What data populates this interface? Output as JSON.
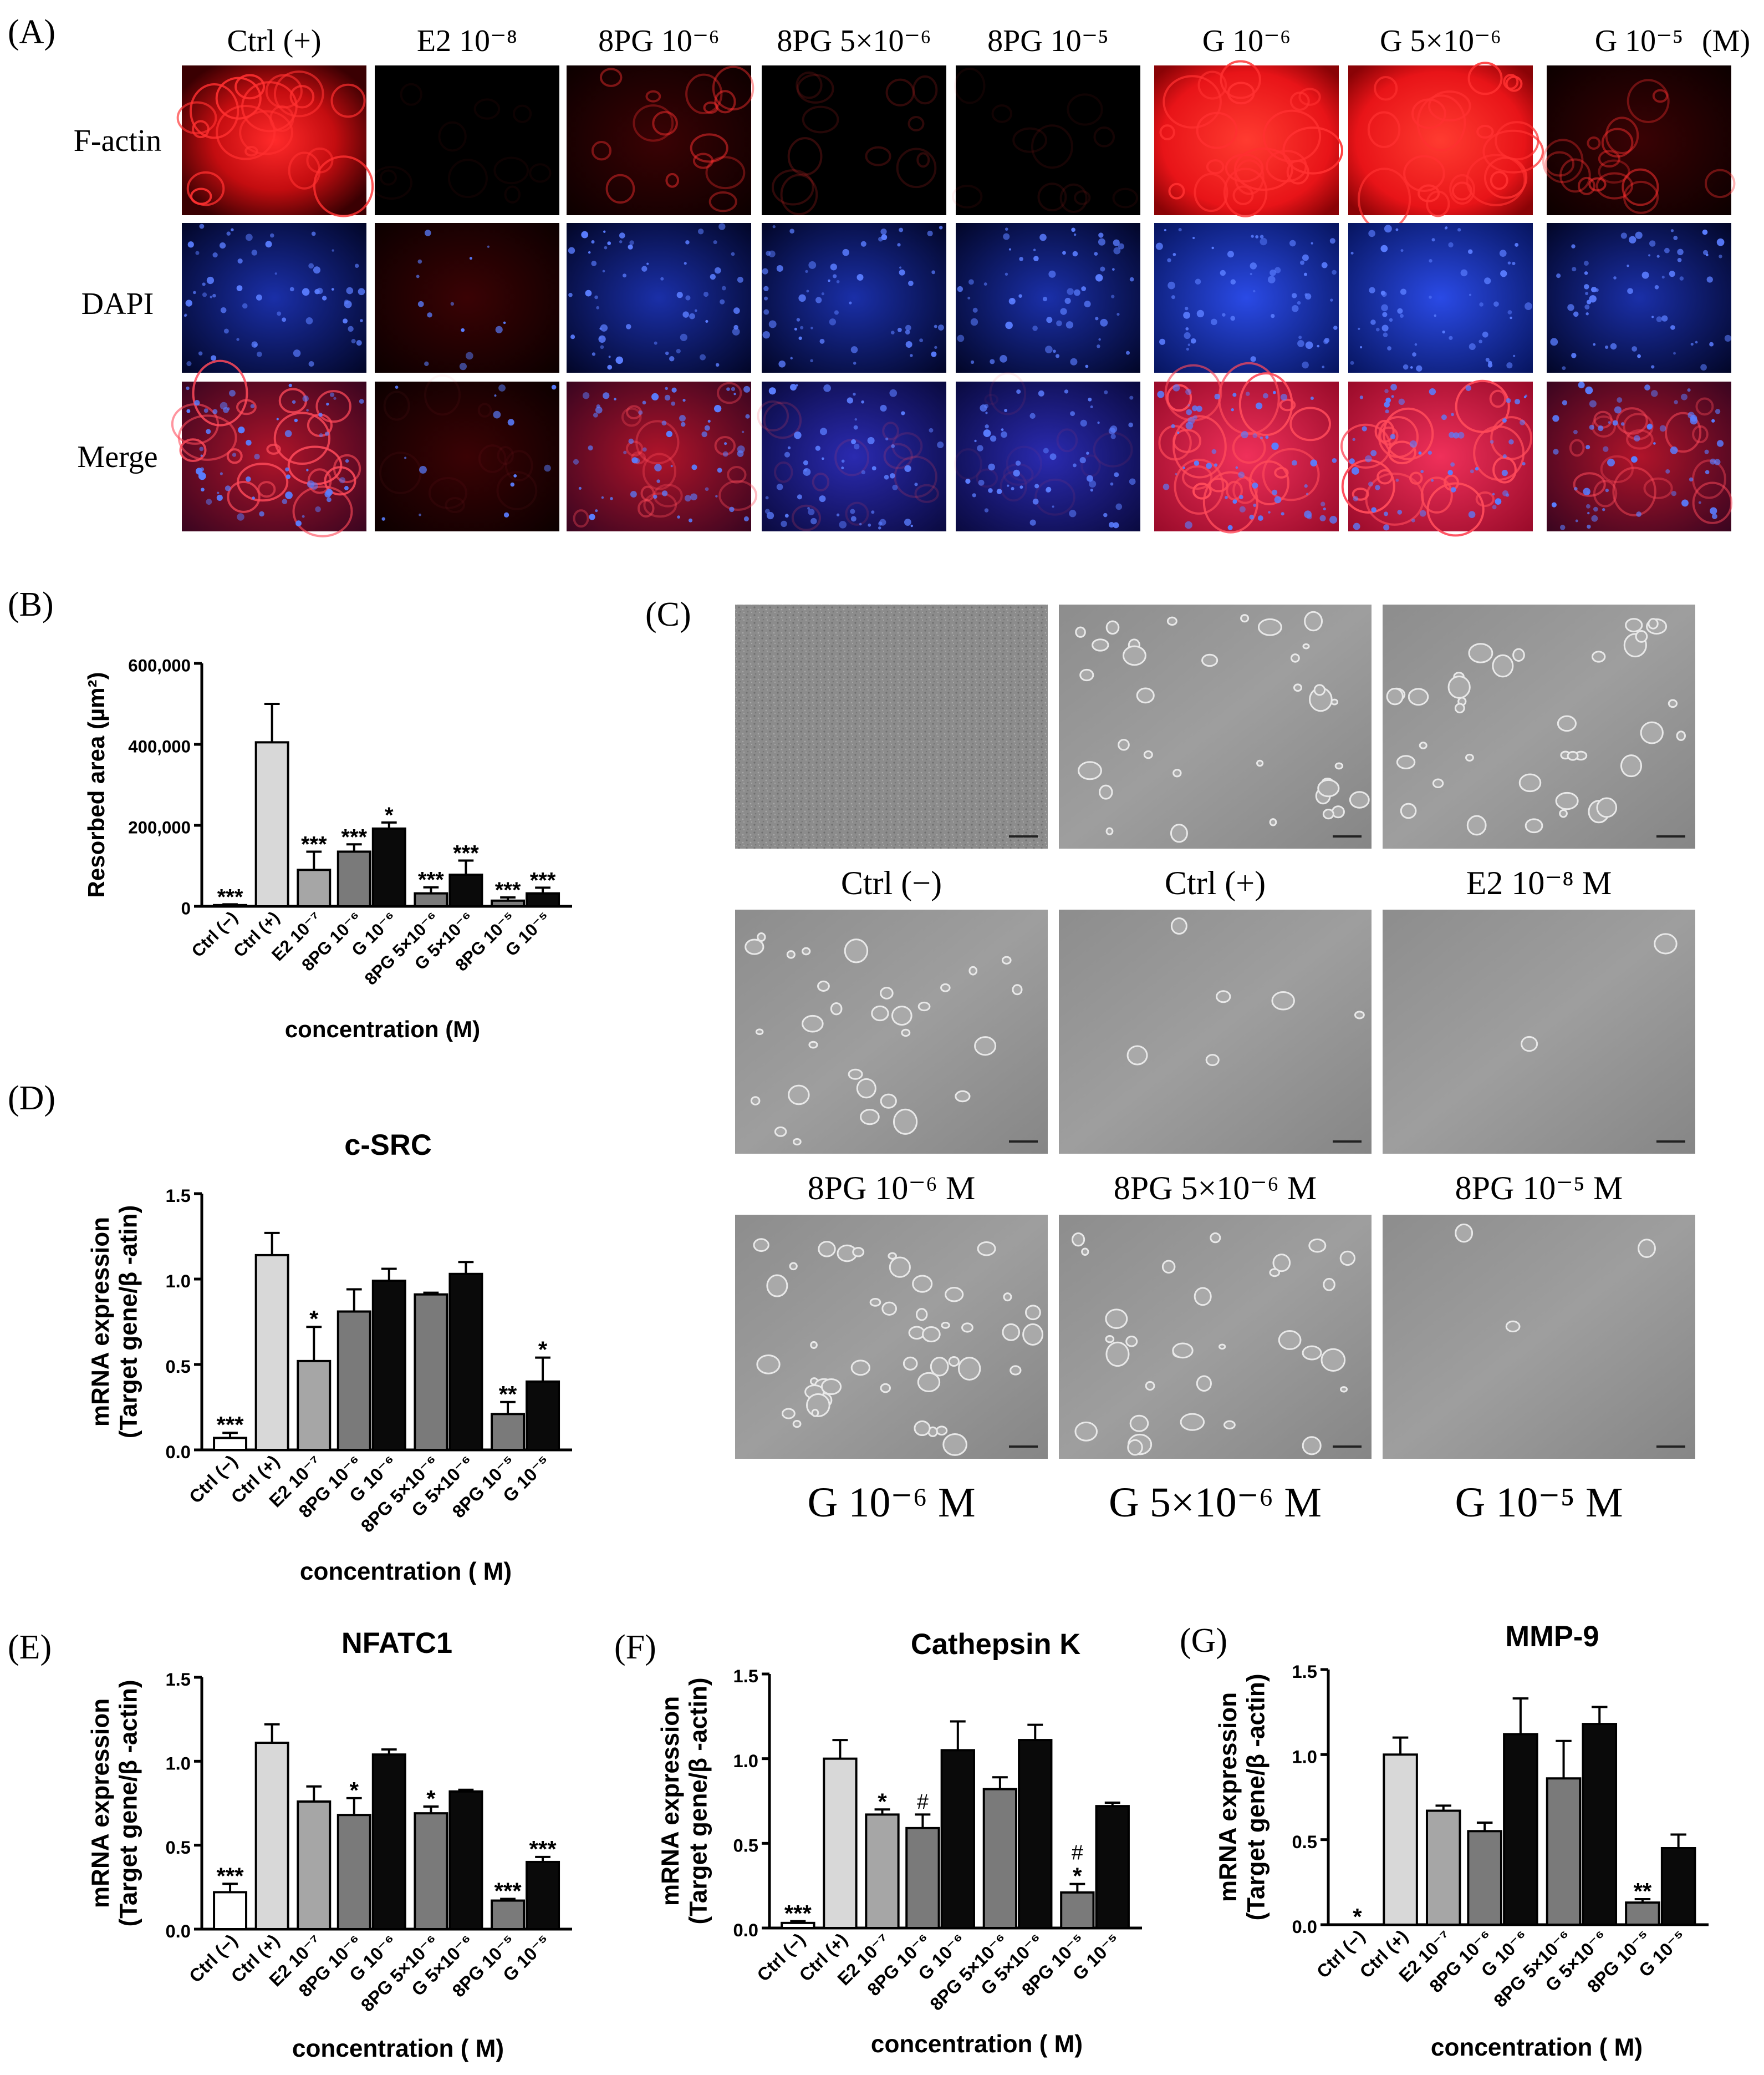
{
  "panels": {
    "A": {
      "tag": "(A)",
      "columns": [
        "Ctrl (+)",
        "E2 10⁻⁸",
        "8PG 10⁻⁶",
        "8PG 5×10⁻⁶",
        "8PG 10⁻⁵",
        "G 10⁻⁶",
        "G 5×10⁻⁶",
        "G 10⁻⁵"
      ],
      "unit": "(M)",
      "rows": [
        "F-actin",
        "DAPI",
        "Merge"
      ]
    },
    "B": {
      "tag": "(B)"
    },
    "C": {
      "tag": "(C)",
      "labels": [
        "Ctrl (−)",
        "Ctrl (+)",
        "E2 10⁻⁸ M",
        "8PG 10⁻⁶ M",
        "8PG 5×10⁻⁶ M",
        "8PG 10⁻⁵ M",
        "G 10⁻⁶ M",
        "G 5×10⁻⁶ M",
        "G 10⁻⁵ M"
      ]
    },
    "D": {
      "tag": "(D)"
    },
    "E": {
      "tag": "(E)"
    },
    "F": {
      "tag": "(F)"
    },
    "G": {
      "tag": "(G)"
    }
  },
  "colors": {
    "bar_white": "#ffffff",
    "bar_light": "#d8d8d8",
    "bar_mid": "#a6a6a6",
    "bar_dark": "#7a7a7a",
    "bar_black": "#0a0a0a",
    "factin_red": "#e8151a",
    "dapi_blue": "#1c3cdc"
  },
  "chart_data": [
    {
      "id": "B",
      "type": "bar",
      "title": "",
      "ylabel": "Resorbed area (µm²)",
      "xlabel": "concentration (M)",
      "ylim": [
        0,
        600000
      ],
      "yticks": [
        0,
        200000,
        400000,
        600000
      ],
      "ytick_labels": [
        "0",
        "200,000",
        "400,000",
        "600,000"
      ],
      "categories": [
        "Ctrl (−)",
        "Ctrl (+)",
        "E2 10⁻⁷",
        "8PG 10⁻⁶",
        "G 10⁻⁶",
        "8PG 5×10⁻⁶",
        "G 5×10⁻⁶",
        "8PG 10⁻⁵",
        "G 10⁻⁵"
      ],
      "values": [
        3000,
        405000,
        90000,
        135000,
        192000,
        32000,
        78000,
        14000,
        32000
      ],
      "errors": [
        2000,
        95000,
        45000,
        18000,
        15000,
        15000,
        35000,
        8000,
        14000
      ],
      "significance": [
        "***",
        "",
        "***",
        "***",
        "*",
        "***",
        "***",
        "***",
        "***"
      ]
    },
    {
      "id": "D",
      "type": "bar",
      "title": "c-SRC",
      "ylabel": "mRNA expression (Target gene/β -atin)",
      "xlabel": "concentration ( M)",
      "ylim": [
        0,
        1.5
      ],
      "yticks": [
        0,
        0.5,
        1.0,
        1.5
      ],
      "ytick_labels": [
        "0.0",
        "0.5",
        "1.0",
        "1.5"
      ],
      "categories": [
        "Ctrl (−)",
        "Ctrl (+)",
        "E2 10⁻⁷",
        "8PG 10⁻⁶",
        "G 10⁻⁶",
        "8PG 5×10⁻⁶",
        "G 5×10⁻⁶",
        "8PG 10⁻⁵",
        "G 10⁻⁵"
      ],
      "values": [
        0.07,
        1.14,
        0.52,
        0.81,
        0.99,
        0.91,
        1.03,
        0.21,
        0.4
      ],
      "errors": [
        0.03,
        0.13,
        0.2,
        0.13,
        0.07,
        0.01,
        0.07,
        0.07,
        0.14
      ],
      "significance": [
        "***",
        "",
        "*",
        "",
        "",
        "",
        "",
        "**",
        "*"
      ]
    },
    {
      "id": "E",
      "type": "bar",
      "title": "NFATC1",
      "ylabel": "mRNA expression (Target gene/β -actin)",
      "xlabel": "concentration ( M)",
      "ylim": [
        0,
        1.5
      ],
      "yticks": [
        0,
        0.5,
        1.0,
        1.5
      ],
      "ytick_labels": [
        "0.0",
        "0.5",
        "1.0",
        "1.5"
      ],
      "categories": [
        "Ctrl (−)",
        "Ctrl (+)",
        "E2 10⁻⁷",
        "8PG 10⁻⁶",
        "G 10⁻⁶",
        "8PG 5×10⁻⁶",
        "G 5×10⁻⁶",
        "8PG 10⁻⁵",
        "G 10⁻⁵"
      ],
      "values": [
        0.22,
        1.11,
        0.76,
        0.68,
        1.04,
        0.69,
        0.82,
        0.17,
        0.4
      ],
      "errors": [
        0.05,
        0.11,
        0.09,
        0.1,
        0.03,
        0.04,
        0.01,
        0.01,
        0.03
      ],
      "significance": [
        "***",
        "",
        "",
        "*",
        "",
        "*",
        "",
        "***",
        "***"
      ]
    },
    {
      "id": "F",
      "type": "bar",
      "title": "Cathepsin K",
      "ylabel": "mRNA expression (Target gene/β -actin)",
      "xlabel": "concentration ( M)",
      "ylim": [
        0,
        1.5
      ],
      "yticks": [
        0,
        0.5,
        1.0,
        1.5
      ],
      "ytick_labels": [
        "0.0",
        "0.5",
        "1.0",
        "1.5"
      ],
      "categories": [
        "Ctrl (−)",
        "Ctrl (+)",
        "E2 10⁻⁷",
        "8PG 10⁻⁶",
        "G 10⁻⁶",
        "8PG 5×10⁻⁶",
        "G 5×10⁻⁶",
        "8PG 10⁻⁵",
        "G 10⁻⁵"
      ],
      "values": [
        0.03,
        1.0,
        0.67,
        0.59,
        1.05,
        0.82,
        1.11,
        0.21,
        0.72
      ],
      "errors": [
        0.01,
        0.11,
        0.03,
        0.08,
        0.17,
        0.07,
        0.09,
        0.05,
        0.02
      ],
      "significance": [
        "***",
        "",
        "*",
        "#",
        "",
        "",
        "",
        "#\n*",
        ""
      ]
    },
    {
      "id": "G",
      "type": "bar",
      "title": "MMP-9",
      "ylabel": "mRNA expression (Target gene/β -actin)",
      "xlabel": "concentration ( M)",
      "ylim": [
        0,
        1.5
      ],
      "yticks": [
        0,
        0.5,
        1.0,
        1.5
      ],
      "ytick_labels": [
        "0.0",
        "0.5",
        "1.0",
        "1.5"
      ],
      "categories": [
        "Ctrl (−)",
        "Ctrl (+)",
        "E2 10⁻⁷",
        "8PG 10⁻⁶",
        "G 10⁻⁶",
        "8PG 5×10⁻⁶",
        "G 5×10⁻⁶",
        "8PG 10⁻⁵",
        "G 10⁻⁵"
      ],
      "values": [
        0.0,
        1.0,
        0.67,
        0.55,
        1.12,
        0.86,
        1.18,
        0.13,
        0.45
      ],
      "errors": [
        0.0,
        0.1,
        0.03,
        0.05,
        0.21,
        0.22,
        0.1,
        0.02,
        0.08
      ],
      "significance": [
        "*",
        "",
        "",
        "",
        "",
        "",
        "",
        "**",
        ""
      ]
    }
  ]
}
